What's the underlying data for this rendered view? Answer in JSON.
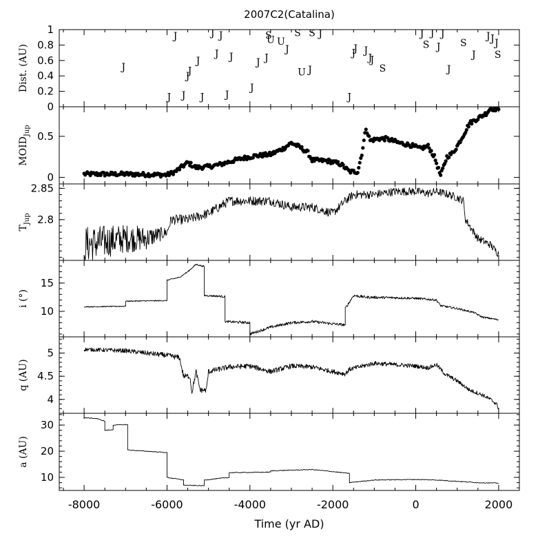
{
  "title": "2007C2(Catalina)",
  "chart_data": [
    {
      "id": "dist",
      "type": "scatter",
      "ylabel": "Dist. (AU)",
      "ylim": [
        0,
        1
      ],
      "yticks": [
        "0",
        "0.2",
        "0.4",
        "0.6",
        "0.8",
        "1"
      ],
      "marker": "letter",
      "points": [
        {
          "x": -7050,
          "y": 0.52,
          "label": "J"
        },
        {
          "x": -5950,
          "y": 0.13,
          "label": "J"
        },
        {
          "x": -5800,
          "y": 0.92,
          "label": "J"
        },
        {
          "x": -5600,
          "y": 0.15,
          "label": "J"
        },
        {
          "x": -5500,
          "y": 0.4,
          "label": "J"
        },
        {
          "x": -5450,
          "y": 0.47,
          "label": "J"
        },
        {
          "x": -5250,
          "y": 0.6,
          "label": "J"
        },
        {
          "x": -5150,
          "y": 0.13,
          "label": "J"
        },
        {
          "x": -4900,
          "y": 0.96,
          "label": "J"
        },
        {
          "x": -4800,
          "y": 0.69,
          "label": "J"
        },
        {
          "x": -4700,
          "y": 0.93,
          "label": "J"
        },
        {
          "x": -4550,
          "y": 0.16,
          "label": "J"
        },
        {
          "x": -4450,
          "y": 0.65,
          "label": "J"
        },
        {
          "x": -3950,
          "y": 0.25,
          "label": "J"
        },
        {
          "x": -3800,
          "y": 0.58,
          "label": "J"
        },
        {
          "x": -3600,
          "y": 0.64,
          "label": "J"
        },
        {
          "x": -3550,
          "y": 0.93,
          "label": "S"
        },
        {
          "x": -3500,
          "y": 0.87,
          "label": "U"
        },
        {
          "x": -3250,
          "y": 0.85,
          "label": "U"
        },
        {
          "x": -3100,
          "y": 0.75,
          "label": "J"
        },
        {
          "x": -2850,
          "y": 0.96,
          "label": "S"
        },
        {
          "x": -2750,
          "y": 0.45,
          "label": "U"
        },
        {
          "x": -2550,
          "y": 0.48,
          "label": "J"
        },
        {
          "x": -2500,
          "y": 0.96,
          "label": "S"
        },
        {
          "x": -2300,
          "y": 0.95,
          "label": "J"
        },
        {
          "x": -1600,
          "y": 0.13,
          "label": "J"
        },
        {
          "x": -1500,
          "y": 0.7,
          "label": "J"
        },
        {
          "x": -1450,
          "y": 0.76,
          "label": "J"
        },
        {
          "x": -1200,
          "y": 0.73,
          "label": "J"
        },
        {
          "x": -1100,
          "y": 0.64,
          "label": "J"
        },
        {
          "x": -1050,
          "y": 0.61,
          "label": "J"
        },
        {
          "x": -800,
          "y": 0.5,
          "label": "S"
        },
        {
          "x": 150,
          "y": 0.95,
          "label": "J"
        },
        {
          "x": 250,
          "y": 0.81,
          "label": "S"
        },
        {
          "x": 400,
          "y": 0.96,
          "label": "J"
        },
        {
          "x": 550,
          "y": 0.78,
          "label": "J"
        },
        {
          "x": 650,
          "y": 0.95,
          "label": "J"
        },
        {
          "x": 800,
          "y": 0.49,
          "label": "J"
        },
        {
          "x": 1150,
          "y": 0.83,
          "label": "S"
        },
        {
          "x": 1400,
          "y": 0.68,
          "label": "J"
        },
        {
          "x": 1750,
          "y": 0.92,
          "label": "J"
        },
        {
          "x": 1850,
          "y": 0.89,
          "label": "J"
        },
        {
          "x": 1950,
          "y": 0.83,
          "label": "J"
        },
        {
          "x": 1980,
          "y": 0.68,
          "label": "S"
        }
      ]
    },
    {
      "id": "moid",
      "type": "scatter",
      "ylabel": "MOID",
      "ylabel_sub": "Jup",
      "ylim": [
        -0.08,
        0.86
      ],
      "yticks": [
        "0",
        "0.5"
      ],
      "marker": "dot",
      "knots": [
        [
          -8000,
          0.04
        ],
        [
          -7000,
          0.04
        ],
        [
          -6000,
          0.03
        ],
        [
          -5800,
          0.07
        ],
        [
          -5500,
          0.18
        ],
        [
          -5300,
          0.12
        ],
        [
          -5000,
          0.13
        ],
        [
          -4700,
          0.16
        ],
        [
          -4500,
          0.19
        ],
        [
          -4200,
          0.23
        ],
        [
          -3900,
          0.26
        ],
        [
          -3500,
          0.28
        ],
        [
          -3200,
          0.35
        ],
        [
          -3000,
          0.42
        ],
        [
          -2800,
          0.37
        ],
        [
          -2600,
          0.3
        ],
        [
          -2500,
          0.21
        ],
        [
          -2100,
          0.2
        ],
        [
          -1800,
          0.16
        ],
        [
          -1600,
          0.07
        ],
        [
          -1400,
          0.07
        ],
        [
          -1300,
          0.29
        ],
        [
          -1200,
          0.6
        ],
        [
          -1100,
          0.45
        ],
        [
          -900,
          0.47
        ],
        [
          -700,
          0.47
        ],
        [
          -400,
          0.42
        ],
        [
          -100,
          0.39
        ],
        [
          100,
          0.35
        ],
        [
          300,
          0.38
        ],
        [
          450,
          0.25
        ],
        [
          600,
          0.02
        ],
        [
          750,
          0.25
        ],
        [
          900,
          0.3
        ],
        [
          1000,
          0.38
        ],
        [
          1100,
          0.47
        ],
        [
          1300,
          0.66
        ],
        [
          1500,
          0.72
        ],
        [
          1700,
          0.78
        ],
        [
          1800,
          0.84
        ],
        [
          2000,
          0.83
        ]
      ],
      "jitter": 0.025,
      "spacing": 25
    },
    {
      "id": "tjup",
      "type": "line",
      "ylabel": "T",
      "ylabel_sub": "Jup",
      "ylim": [
        2.735,
        2.857
      ],
      "yticks": [
        "2.8",
        "2.85"
      ],
      "yminor_step": 0.01,
      "knots": [
        [
          -8000,
          2.76
        ],
        [
          -7000,
          2.77
        ],
        [
          -6500,
          2.77
        ],
        [
          -6000,
          2.78
        ],
        [
          -5900,
          2.8
        ],
        [
          -5500,
          2.8
        ],
        [
          -5000,
          2.81
        ],
        [
          -4500,
          2.83
        ],
        [
          -4000,
          2.83
        ],
        [
          -3500,
          2.83
        ],
        [
          -3000,
          2.82
        ],
        [
          -2500,
          2.82
        ],
        [
          -2000,
          2.81
        ],
        [
          -1700,
          2.83
        ],
        [
          -1500,
          2.84
        ],
        [
          -1000,
          2.84
        ],
        [
          -500,
          2.845
        ],
        [
          0,
          2.845
        ],
        [
          300,
          2.842
        ],
        [
          500,
          2.845
        ],
        [
          800,
          2.84
        ],
        [
          1000,
          2.835
        ],
        [
          1150,
          2.83
        ],
        [
          1200,
          2.8
        ],
        [
          1500,
          2.77
        ],
        [
          1800,
          2.76
        ],
        [
          2000,
          2.745
        ]
      ],
      "noise": [
        [
          -8000,
          0.03
        ],
        [
          -6600,
          0.02
        ],
        [
          -6000,
          0.008
        ],
        [
          2000,
          0.006
        ]
      ],
      "start_y": 2.74,
      "end_y": 2.745,
      "spacing": 12
    },
    {
      "id": "incl",
      "type": "line",
      "ylabel": "i (°)",
      "ylim": [
        5.5,
        19
      ],
      "yticks": [
        "10",
        "15"
      ],
      "yminor_step": 1,
      "knots": [
        [
          -8000,
          10.8
        ],
        [
          -7000,
          10.9
        ],
        [
          -7000,
          11.8
        ],
        [
          -6000,
          11.9
        ],
        [
          -6000,
          15.5
        ],
        [
          -5700,
          16.0
        ],
        [
          -5500,
          17.0
        ],
        [
          -5300,
          18.3
        ],
        [
          -5100,
          17.9
        ],
        [
          -5100,
          12.8
        ],
        [
          -4800,
          12.7
        ],
        [
          -4600,
          12.6
        ],
        [
          -4600,
          8.2
        ],
        [
          -4000,
          8.0
        ],
        [
          -4000,
          6.0
        ],
        [
          -3500,
          7.2
        ],
        [
          -3000,
          8.0
        ],
        [
          -2500,
          8.2
        ],
        [
          -2000,
          7.8
        ],
        [
          -1700,
          7.6
        ],
        [
          -1700,
          10.5
        ],
        [
          -1500,
          12.8
        ],
        [
          -1200,
          12.5
        ],
        [
          -500,
          12.4
        ],
        [
          0,
          12.3
        ],
        [
          500,
          12.0
        ],
        [
          600,
          11.0
        ],
        [
          1000,
          10.5
        ],
        [
          1400,
          9.8
        ],
        [
          1600,
          9.0
        ],
        [
          2000,
          8.5
        ]
      ],
      "noise": [
        [
          -8000,
          0.08
        ],
        [
          -5500,
          0.1
        ],
        [
          -4000,
          0.25
        ],
        [
          -1700,
          0.25
        ],
        [
          2000,
          0.15
        ]
      ],
      "spacing": 10
    },
    {
      "id": "q",
      "type": "line",
      "ylabel": "q (AU)",
      "ylim": [
        3.7,
        5.35
      ],
      "yticks": [
        "4",
        "4.5",
        "5"
      ],
      "yminor_step": 0.1,
      "knots": [
        [
          -8000,
          5.08
        ],
        [
          -7000,
          5.05
        ],
        [
          -6500,
          5.0
        ],
        [
          -6000,
          4.95
        ],
        [
          -5700,
          4.9
        ],
        [
          -5600,
          4.5
        ],
        [
          -5450,
          4.5
        ],
        [
          -5400,
          4.15
        ],
        [
          -5300,
          4.6
        ],
        [
          -5200,
          4.2
        ],
        [
          -5050,
          4.2
        ],
        [
          -5000,
          4.6
        ],
        [
          -4500,
          4.7
        ],
        [
          -4000,
          4.72
        ],
        [
          -3500,
          4.6
        ],
        [
          -3000,
          4.72
        ],
        [
          -2500,
          4.7
        ],
        [
          -2000,
          4.6
        ],
        [
          -1700,
          4.55
        ],
        [
          -1600,
          4.65
        ],
        [
          -1000,
          4.78
        ],
        [
          -500,
          4.75
        ],
        [
          0,
          4.72
        ],
        [
          300,
          4.68
        ],
        [
          500,
          4.75
        ],
        [
          700,
          4.55
        ],
        [
          1000,
          4.4
        ],
        [
          1300,
          4.2
        ],
        [
          1600,
          4.1
        ],
        [
          1800,
          4.0
        ],
        [
          1950,
          3.9
        ],
        [
          2000,
          3.8
        ]
      ],
      "noise": [
        [
          -8000,
          0.04
        ],
        [
          -5600,
          0.06
        ],
        [
          2000,
          0.04
        ]
      ],
      "spacing": 10
    },
    {
      "id": "a",
      "type": "line",
      "ylabel": "a (AU)",
      "ylim": [
        5,
        34.5
      ],
      "yticks": [
        "10",
        "20",
        "30"
      ],
      "yminor_step": 2,
      "knots": [
        [
          -8000,
          32.8
        ],
        [
          -7700,
          32.5
        ],
        [
          -7500,
          31.5
        ],
        [
          -7500,
          28.0
        ],
        [
          -7300,
          28.2
        ],
        [
          -7300,
          30.0
        ],
        [
          -6950,
          30.2
        ],
        [
          -6950,
          20.5
        ],
        [
          -6500,
          20.0
        ],
        [
          -6000,
          19.5
        ],
        [
          -6000,
          10.0
        ],
        [
          -5600,
          9.0
        ],
        [
          -5600,
          7.0
        ],
        [
          -5100,
          6.8
        ],
        [
          -5100,
          9.0
        ],
        [
          -4500,
          10.0
        ],
        [
          -4500,
          11.8
        ],
        [
          -3500,
          12.0
        ],
        [
          -3500,
          12.5
        ],
        [
          -2500,
          13.0
        ],
        [
          -2000,
          12.2
        ],
        [
          -1600,
          11.5
        ],
        [
          -1600,
          8.0
        ],
        [
          -1000,
          9.0
        ],
        [
          0,
          9.2
        ],
        [
          500,
          9.0
        ],
        [
          1000,
          8.5
        ],
        [
          1500,
          8.0
        ],
        [
          2000,
          7.8
        ]
      ],
      "noise": [
        [
          -8000,
          0.15
        ],
        [
          2000,
          0.15
        ]
      ],
      "spacing": 15
    }
  ],
  "xaxis": {
    "label": "Time (yr AD)",
    "xlim": [
      -8600,
      2500
    ],
    "ticks": [
      {
        "value": -8000,
        "label": "-8000"
      },
      {
        "value": -6000,
        "label": "-6000"
      },
      {
        "value": -4000,
        "label": "-4000"
      },
      {
        "value": -2000,
        "label": "-2000"
      },
      {
        "value": 0,
        "label": "0"
      },
      {
        "value": 2000,
        "label": "2000"
      }
    ],
    "minor_step": 500
  }
}
